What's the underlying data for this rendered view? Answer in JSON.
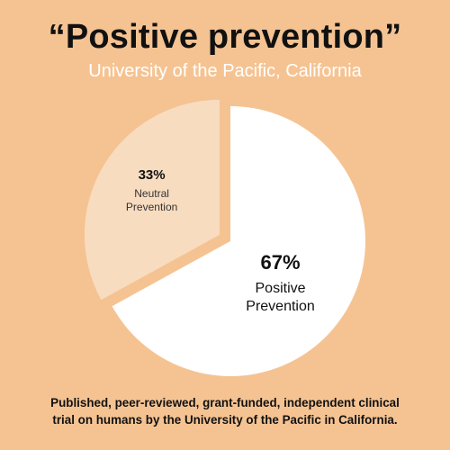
{
  "header": {
    "title": "“Positive prevention”",
    "subtitle": "University of the Pacific, California"
  },
  "chart_data": {
    "type": "pie",
    "title": "“Positive prevention”",
    "subtitle": "University of the Pacific, California",
    "slices": [
      {
        "label_lines": [
          "Positive",
          "Prevention"
        ],
        "value": 67,
        "display_value": "67%",
        "color": "#ffffff",
        "text_color": "#111111",
        "exploded": false
      },
      {
        "label_lines": [
          "Neutral",
          "Prevention"
        ],
        "value": 33,
        "display_value": "33%",
        "color": "#f8dcc0",
        "text_color": "#333333",
        "exploded": true
      }
    ]
  },
  "footer": {
    "line1": "Published, peer-reviewed, grant-funded, independent clinical",
    "line2": "trial  on humans by the University of the Pacific in California."
  },
  "colors": {
    "background": "#f5c392",
    "positive_slice": "#ffffff",
    "neutral_slice": "#f8dcc0"
  }
}
